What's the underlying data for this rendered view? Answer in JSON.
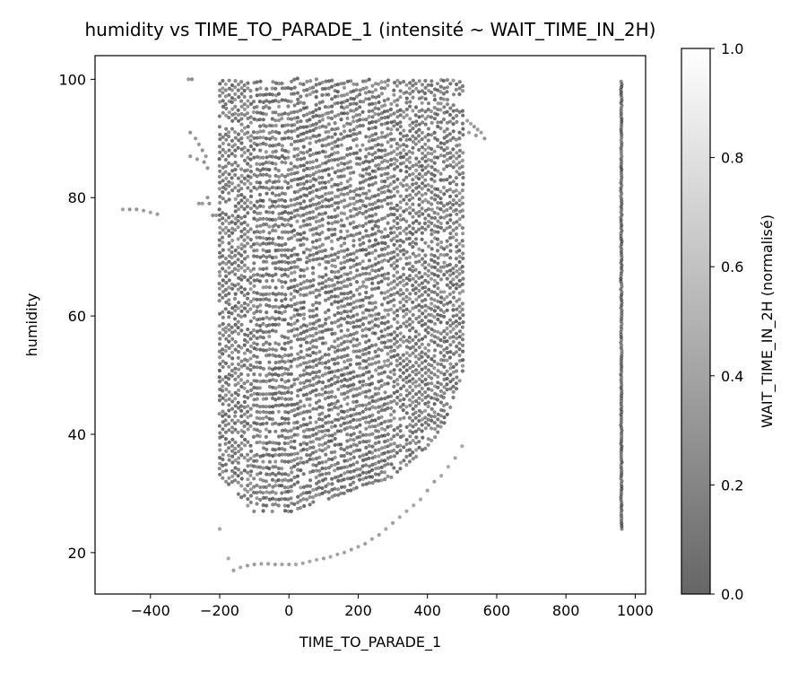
{
  "chart_data": {
    "type": "scatter",
    "title": "humidity vs TIME_TO_PARADE_1 (intensité ~ WAIT_TIME_IN_2H)",
    "xlabel": "TIME_TO_PARADE_1",
    "ylabel": "humidity",
    "xlim": [
      -560,
      1030
    ],
    "ylim": [
      13,
      104
    ],
    "xticks": [
      -400,
      -200,
      0,
      200,
      400,
      600,
      800,
      1000
    ],
    "yticks": [
      20,
      40,
      60,
      80,
      100
    ],
    "grid": false,
    "colorbar": {
      "label": "WAIT_TIME_IN_2H (normalisé)",
      "range": [
        0,
        1
      ],
      "ticks": [
        0.0,
        0.2,
        0.4,
        0.6,
        0.8,
        1.0
      ],
      "tick_labels": [
        "0.0",
        "0.2",
        "0.4",
        "0.6",
        "0.8",
        "1.0"
      ],
      "colormap": "gray",
      "alpha": 0.6
    },
    "clusters": [
      {
        "description": "main dense band",
        "x_range": [
          -200,
          510
        ],
        "y_range_bottom_at_x": [
          [
            -200,
            33
          ],
          [
            -100,
            27
          ],
          [
            0,
            27
          ],
          [
            100,
            29
          ],
          [
            200,
            31
          ],
          [
            300,
            33
          ],
          [
            400,
            38
          ],
          [
            450,
            42
          ],
          [
            510,
            52
          ]
        ],
        "y_top": 100,
        "intensity": [
          0.0,
          0.35
        ]
      },
      {
        "description": "vertical strip",
        "x": 960,
        "y_range": [
          24,
          100
        ],
        "intensity": [
          0.0,
          0.3
        ]
      },
      {
        "description": "isolated curve left",
        "points": [
          [
            -480,
            78
          ],
          [
            -460,
            78
          ],
          [
            -440,
            78
          ],
          [
            -420,
            77.8
          ],
          [
            -400,
            77.5
          ],
          [
            -380,
            77.2
          ]
        ],
        "intensity": 0.3
      },
      {
        "description": "upper left arc",
        "points": [
          [
            -290,
            100
          ],
          [
            -280,
            100
          ],
          [
            -285,
            91
          ],
          [
            -270,
            90
          ],
          [
            -260,
            89
          ],
          [
            -250,
            88
          ],
          [
            -240,
            87
          ],
          [
            -285,
            87
          ],
          [
            -265,
            86.5
          ],
          [
            -245,
            86
          ],
          [
            -235,
            85
          ],
          [
            -260,
            79
          ],
          [
            -250,
            79
          ],
          [
            -235,
            80
          ],
          [
            -230,
            79
          ],
          [
            -220,
            77
          ],
          [
            -210,
            77
          ]
        ],
        "intensity": 0.25
      },
      {
        "description": "right edge tail",
        "points": [
          [
            515,
            93
          ],
          [
            525,
            92.5
          ],
          [
            535,
            92
          ],
          [
            545,
            91.5
          ],
          [
            555,
            91
          ],
          [
            565,
            90
          ],
          [
            520,
            91
          ],
          [
            540,
            90.5
          ]
        ],
        "intensity": 0.3
      },
      {
        "description": "lower arcs",
        "points": [
          [
            -200,
            24
          ],
          [
            -175,
            19
          ],
          [
            -160,
            17
          ],
          [
            -140,
            17.5
          ],
          [
            -120,
            17.8
          ],
          [
            -100,
            18
          ],
          [
            -80,
            18.1
          ],
          [
            -60,
            18.1
          ],
          [
            -40,
            18
          ],
          [
            -20,
            18
          ],
          [
            0,
            18
          ],
          [
            20,
            18
          ],
          [
            40,
            18.2
          ],
          [
            60,
            18.5
          ],
          [
            80,
            18.8
          ],
          [
            100,
            19
          ],
          [
            120,
            19.3
          ],
          [
            140,
            19.7
          ],
          [
            160,
            20
          ],
          [
            180,
            20.5
          ],
          [
            200,
            21
          ],
          [
            220,
            21.5
          ],
          [
            240,
            22.3
          ],
          [
            260,
            23
          ],
          [
            280,
            24
          ],
          [
            300,
            25
          ],
          [
            320,
            26
          ],
          [
            340,
            27
          ],
          [
            360,
            28
          ],
          [
            380,
            29
          ],
          [
            400,
            30.5
          ],
          [
            420,
            32
          ],
          [
            440,
            33
          ],
          [
            460,
            34.5
          ],
          [
            480,
            36
          ],
          [
            500,
            38
          ]
        ],
        "intensity": 0.35
      }
    ]
  }
}
